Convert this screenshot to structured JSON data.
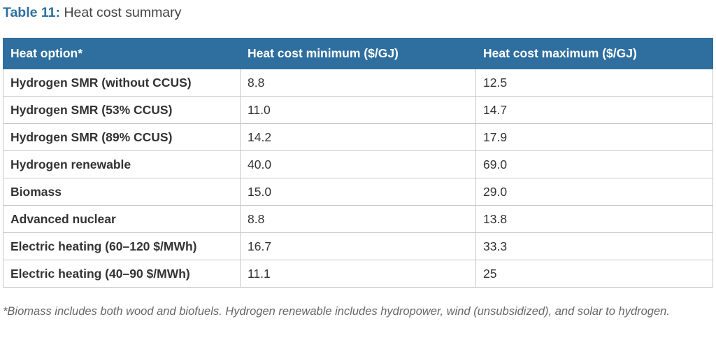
{
  "caption": {
    "label": "Table 11:",
    "text": "Heat cost summary"
  },
  "table": {
    "headers": [
      "Heat option*",
      "Heat cost minimum ($/GJ)",
      "Heat cost maximum ($/GJ)"
    ],
    "rows": [
      [
        "Hydrogen SMR (without CCUS)",
        "8.8",
        "12.5"
      ],
      [
        "Hydrogen SMR (53% CCUS)",
        "11.0",
        "14.7"
      ],
      [
        "Hydrogen SMR (89% CCUS)",
        "14.2",
        "17.9"
      ],
      [
        "Hydrogen renewable",
        "40.0",
        "69.0"
      ],
      [
        "Biomass",
        "15.0",
        "29.0"
      ],
      [
        "Advanced nuclear",
        "8.8",
        "13.8"
      ],
      [
        "Electric heating (60–120 $/MWh)",
        "16.7",
        "33.3"
      ],
      [
        "Electric heating (40–90 $/MWh)",
        "11.1",
        "25"
      ]
    ]
  },
  "footnote": "*Biomass includes both wood and biofuels. Hydrogen renewable includes hydropower, wind (unsubsidized), and solar to hydrogen.",
  "colors": {
    "header_background": "#2f6f9f",
    "caption_label": "#2f6f9f",
    "grid_border": "#c8c8c8"
  }
}
